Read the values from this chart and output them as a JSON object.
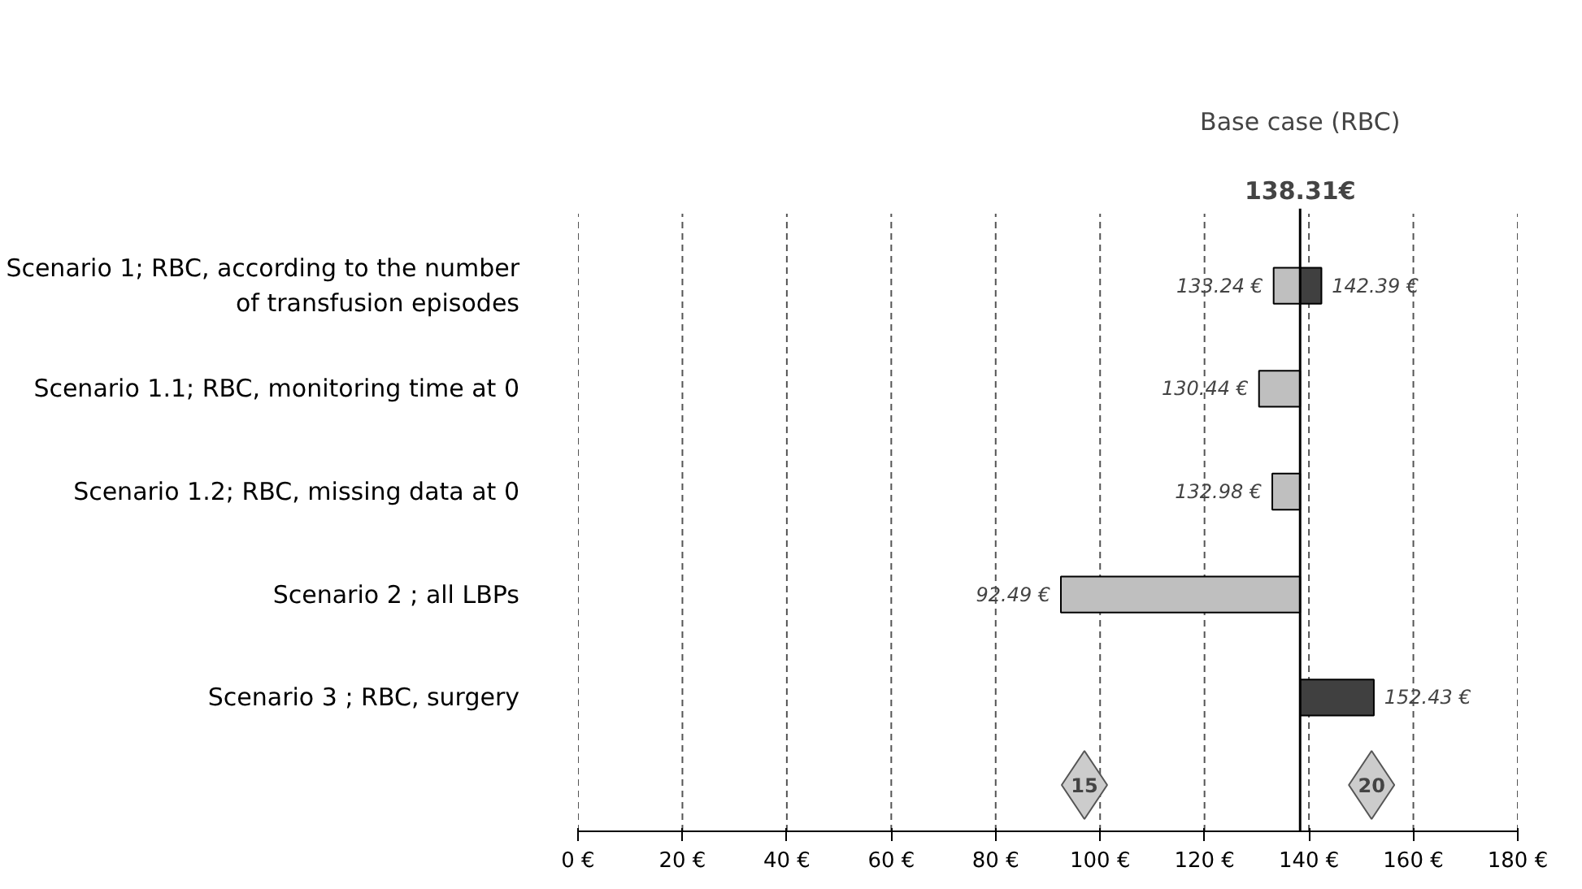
{
  "chart_data": {
    "type": "bar",
    "orientation": "horizontal",
    "categories": [
      "Scenario 1; RBC, according to the number of transfusion episodes",
      "Scenario 1.1; RBC, monitoring time at 0",
      "Scenario 1.2; RBC, missing data at 0",
      "Scenario 2 ; all LBPs",
      "Scenario 3 ; RBC, surgery"
    ],
    "series": [
      {
        "color": "#bfbfbf",
        "base": [
          138.31,
          138.31,
          138.31,
          138.31,
          null
        ],
        "values": [
          -5.07,
          -7.87,
          -5.33,
          -45.82,
          null
        ],
        "value_labels": [
          "133.24 €",
          "130.44 €",
          "132.98 €",
          "92.49 €",
          null
        ]
      },
      {
        "color": "#404040",
        "base": [
          138.31,
          null,
          null,
          null,
          138.31
        ],
        "values": [
          4.08,
          null,
          null,
          null,
          14.12
        ],
        "value_labels": [
          "142.39 €",
          null,
          null,
          null,
          "152.43 €"
        ]
      }
    ],
    "xlim": [
      0,
      180
    ],
    "xticks": [
      {
        "value": 0,
        "label": "0 €"
      },
      {
        "value": 20,
        "label": "20 €"
      },
      {
        "value": 40,
        "label": "40 €"
      },
      {
        "value": 60,
        "label": "60 €"
      },
      {
        "value": 80,
        "label": "80 €"
      },
      {
        "value": 100,
        "label": "100 €"
      },
      {
        "value": 120,
        "label": "120 €"
      },
      {
        "value": 140,
        "label": "140 €"
      },
      {
        "value": 160,
        "label": "160 €"
      },
      {
        "value": 180,
        "label": "180 €"
      }
    ],
    "grid": "x",
    "ref_lines": [
      {
        "axis": "x",
        "value": 138.31,
        "label": "138.31€",
        "color": "#000000"
      }
    ],
    "annotations": [
      "Base case (RBC)",
      {
        "text": "15",
        "x": 97
      },
      {
        "text": "20",
        "x": 152
      }
    ]
  }
}
